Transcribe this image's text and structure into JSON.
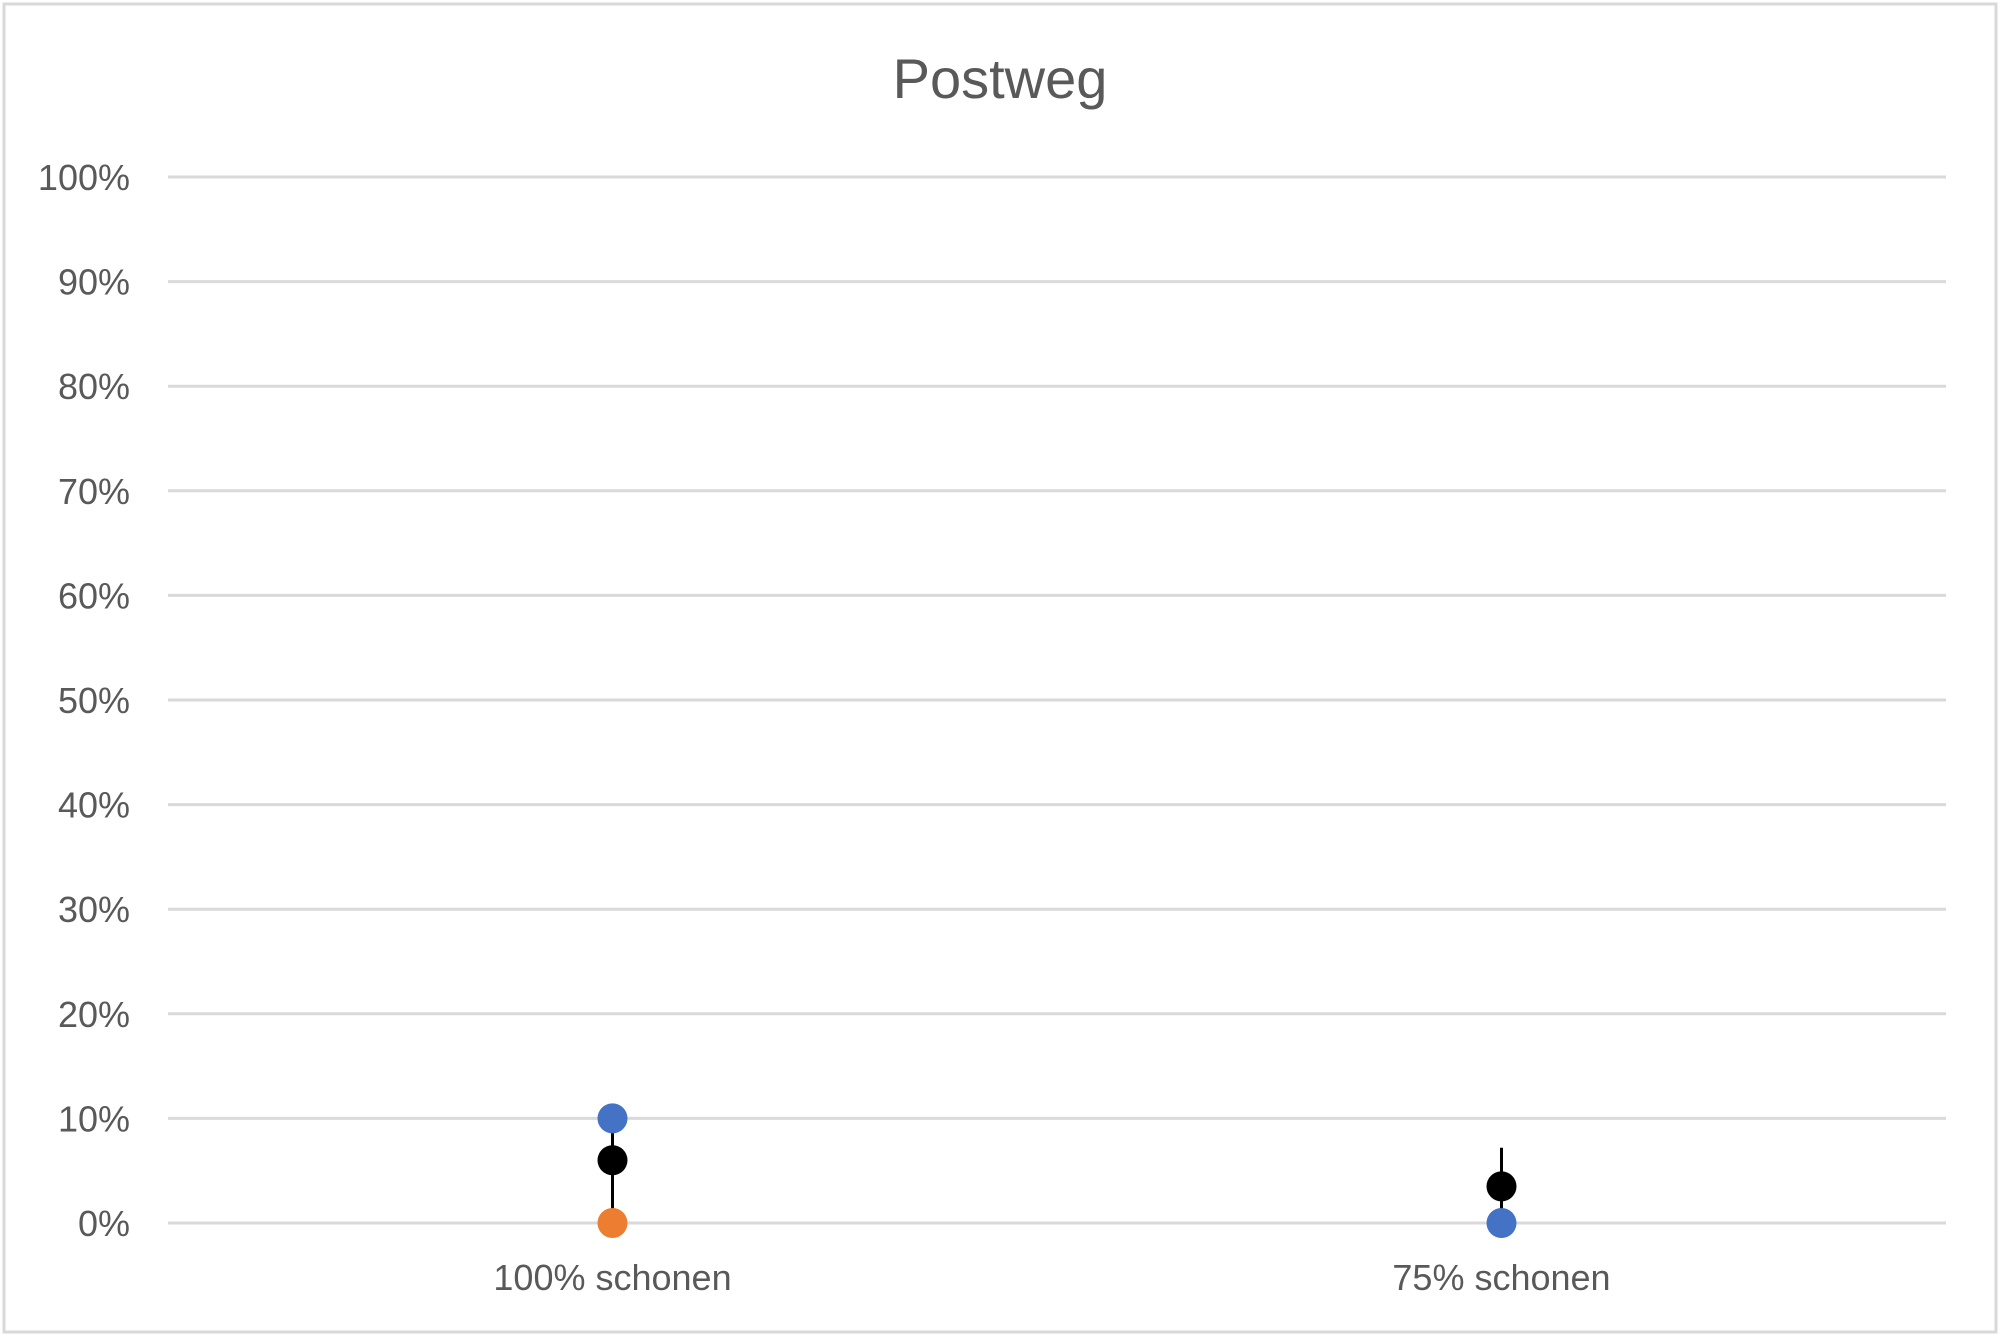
{
  "chart_data": {
    "type": "scatter",
    "title": "Postweg",
    "xlabel": "",
    "ylabel": "",
    "categories": [
      "100% schonen",
      "75% schonen"
    ],
    "y_ticks": [
      "0%",
      "10%",
      "20%",
      "30%",
      "40%",
      "50%",
      "60%",
      "70%",
      "80%",
      "90%",
      "100%"
    ],
    "ylim": [
      0,
      100
    ],
    "grid": true,
    "legend": "none",
    "series": [
      {
        "color": "#4472C4",
        "values": [
          10,
          0
        ]
      },
      {
        "color": "#ED7D31",
        "values": [
          0,
          null
        ]
      },
      {
        "color": "#000000",
        "values": [
          6,
          3.5
        ]
      }
    ],
    "error_bars": [
      {
        "category": "100% schonen",
        "low": 0,
        "high": 10
      },
      {
        "category": "75% schonen",
        "low": 0,
        "high": 7.2
      }
    ],
    "colors": {
      "gridline": "#D9D9D9",
      "text": "#595959",
      "border": "#D9D9D9",
      "error_bar": "#000000"
    }
  }
}
